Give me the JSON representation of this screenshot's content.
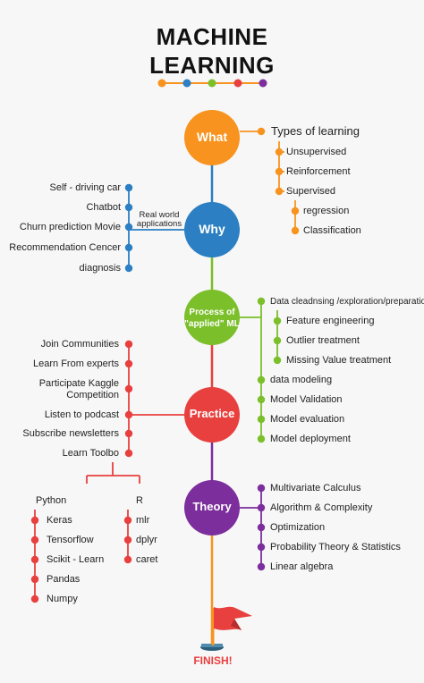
{
  "title": {
    "line1": "MACHINE",
    "line2": "LEARNING"
  },
  "colors": {
    "what": "#f7931e",
    "why": "#2b7fc2",
    "process": "#7bbf2a",
    "practice": "#e8403f",
    "theory": "#7b2e9c",
    "spine": "#7b2e9c",
    "finish_pole": "#f7931e",
    "flag": "#e8403f"
  },
  "nodes": {
    "what": "What",
    "why": "Why",
    "process_line1": "Process of",
    "process_line2": "\"applied\" ML",
    "practice": "Practice",
    "theory": "Theory"
  },
  "what_branch": {
    "header": "Types of learning",
    "items": [
      "Unsupervised",
      "Reinforcement",
      "Supervised"
    ],
    "supervised_items": [
      "regression",
      "Classification"
    ]
  },
  "why_branch": {
    "label_line1": "Real world",
    "label_line2": "applications",
    "items": [
      "Self - driving car",
      "Chatbot",
      "Churn prediction Movie",
      "Recommendation Cencer",
      "diagnosis"
    ]
  },
  "process_branch": {
    "header": "Data cleadnsing /exploration/preparation",
    "sub_items": [
      "Feature engineering",
      "Outlier treatment",
      "Missing Value treatment"
    ],
    "items": [
      "data modeling",
      "Model Validation",
      "Model evaluation",
      "Model deployment"
    ]
  },
  "practice_branch": {
    "items": [
      "Join Communities",
      "Learn From experts",
      "Participate Kaggle",
      "Competition",
      "Listen to podcast",
      "Subscribe newsletters",
      "Learn Toolbo"
    ]
  },
  "tools": {
    "python": {
      "label": "Python",
      "items": [
        "Keras",
        "Tensorflow",
        "Scikit - Learn",
        "Pandas",
        "Numpy"
      ]
    },
    "r": {
      "label": "R",
      "items": [
        "mlr",
        "dplyr",
        "caret"
      ]
    }
  },
  "theory_branch": {
    "items": [
      "Multivariate Calculus",
      "Algorithm & Complexity",
      "Optimization",
      "Probability Theory & Statistics",
      "Linear algebra"
    ]
  },
  "finish": "FINISH!"
}
